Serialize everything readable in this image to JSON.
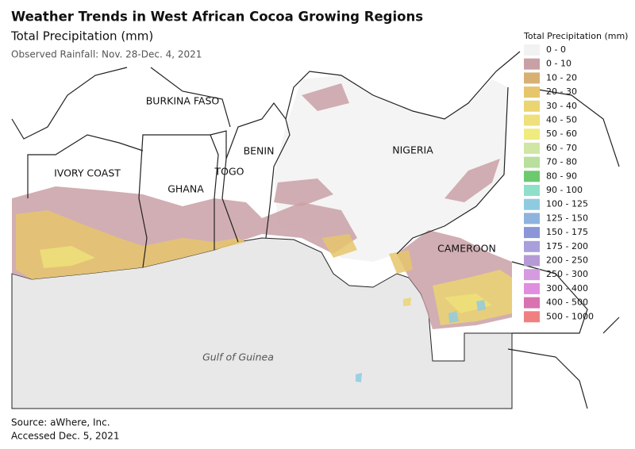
{
  "header": {
    "title": "Weather Trends in West African Cocoa Growing Regions",
    "subtitle": "Total Precipitation (mm)",
    "note": "Observed Rainfall: Nov. 28-Dec. 4, 2021"
  },
  "map": {
    "countries": [
      "BURKINA FASO",
      "IVORY COAST",
      "GHANA",
      "TOGO",
      "BENIN",
      "NIGERIA",
      "CAMEROON"
    ],
    "sea_label": "Gulf of Guinea"
  },
  "legend": {
    "title": "Total Precipitation (mm)",
    "items": [
      {
        "label": "0 - 0",
        "color": "#f2f2f2"
      },
      {
        "label": "0 - 10",
        "color": "#c9a0a6"
      },
      {
        "label": "10 - 20",
        "color": "#d9b074"
      },
      {
        "label": "20 - 30",
        "color": "#e6c56c"
      },
      {
        "label": "30 - 40",
        "color": "#ebd472"
      },
      {
        "label": "40 - 50",
        "color": "#eee07a"
      },
      {
        "label": "50 - 60",
        "color": "#efeb7e"
      },
      {
        "label": "60 - 70",
        "color": "#cfe6a5"
      },
      {
        "label": "70 - 80",
        "color": "#b8df9c"
      },
      {
        "label": "80 - 90",
        "color": "#6cc96e"
      },
      {
        "label": "90 - 100",
        "color": "#8fe0c8"
      },
      {
        "label": "100 - 125",
        "color": "#8fcbe0"
      },
      {
        "label": "125 - 150",
        "color": "#8fb3dd"
      },
      {
        "label": "150 - 175",
        "color": "#8a96d8"
      },
      {
        "label": "175 - 200",
        "color": "#a89fdc"
      },
      {
        "label": "200 - 250",
        "color": "#b59bd6"
      },
      {
        "label": "250 - 300",
        "color": "#d49be0"
      },
      {
        "label": "300 - 400",
        "color": "#e08ee0"
      },
      {
        "label": "400 - 500",
        "color": "#d872b0"
      },
      {
        "label": "500 - 1000",
        "color": "#f08080"
      }
    ]
  },
  "footer": {
    "source": "Source: aWhere, Inc.",
    "accessed": "Accessed Dec. 5, 2021"
  }
}
